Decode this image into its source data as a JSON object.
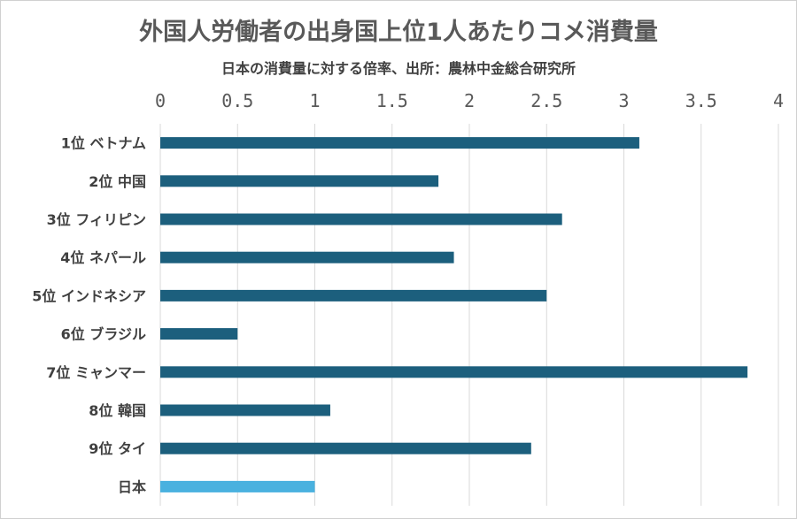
{
  "chart_data": {
    "type": "bar",
    "orientation": "horizontal",
    "title": "外国人労働者の出身国上位1人あたりコメ消費量",
    "subtitle": "日本の消費量に対する倍率、出所：農林中金総合研究所",
    "categories": [
      "1位 ベトナム",
      "2位 中国",
      "3位 フィリピン",
      "4位 ネパール",
      "5位 インドネシア",
      "6位 ブラジル",
      "7位 ミャンマー",
      "8位 韓国",
      "9位 タイ",
      "日本"
    ],
    "values": [
      3.1,
      1.8,
      2.6,
      1.9,
      2.5,
      0.5,
      3.8,
      1.1,
      2.4,
      1.0
    ],
    "xlim": [
      0,
      4
    ],
    "ticks": [
      "0",
      "0.5",
      "1",
      "1.5",
      "2",
      "2.5",
      "3",
      "3.5",
      "4"
    ],
    "tick_values": [
      0,
      0.5,
      1,
      1.5,
      2,
      2.5,
      3,
      3.5,
      4
    ],
    "grid": true,
    "colors": {
      "default": "#1c5f7d",
      "highlight": "#49b1df",
      "grid": "#d9d9d9"
    },
    "highlight_index": 9
  }
}
